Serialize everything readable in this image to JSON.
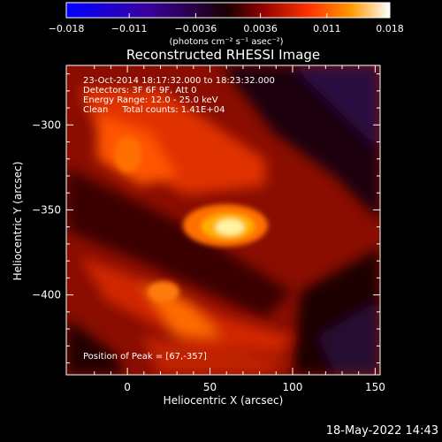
{
  "colorbar": {
    "ticks": [
      "−0.018",
      "−0.011",
      "−0.0036",
      "0.0036",
      "0.011",
      "0.018"
    ],
    "tick_values": [
      -0.018,
      -0.011,
      -0.0036,
      0.0036,
      0.011,
      0.018
    ],
    "range": [
      -0.018,
      0.018
    ],
    "unit_label": "(photons cm⁻² s⁻¹ asec⁻²)"
  },
  "chart_data": {
    "type": "heatmap",
    "title": "Reconstructed RHESSI Image",
    "xlabel": "Heliocentric X (arcsec)",
    "ylabel": "Heliocentric Y (arcsec)",
    "xlim": [
      -37,
      153
    ],
    "ylim": [
      -447,
      -265
    ],
    "xticks": [
      0,
      50,
      100,
      150
    ],
    "yticks": [
      -300,
      -350,
      -400
    ],
    "peak": {
      "x": 67,
      "y": -357
    },
    "colormap": [
      "#0000ff",
      "#4b0082",
      "#000000",
      "#aa0000",
      "#ff6600",
      "#ffff66",
      "#ffffff"
    ],
    "annotations": [
      "23-Oct-2014 18:17:32.000 to 18:23:32.000",
      "Detectors: 3F 6F 9F, Att 0",
      "Energy Range: 12.0 - 25.0 keV",
      "Clean     Total counts: 1.41E+04"
    ],
    "peak_label": "Position of Peak = [67,-357]"
  },
  "footer": {
    "timestamp": "18-May-2022 14:43"
  }
}
